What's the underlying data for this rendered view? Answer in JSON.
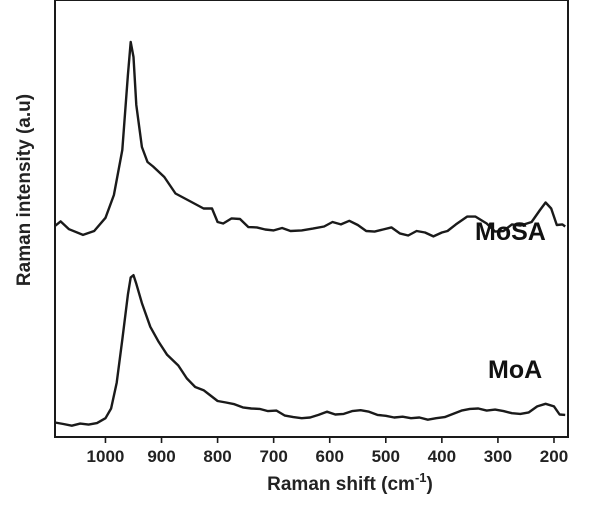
{
  "chart_data": {
    "type": "line",
    "xlabel": "Raman shift (cm",
    "xlabel_sup": "-1",
    "xlabel_tail": ")",
    "ylabel": "Raman intensity (a.u)",
    "xlim": [
      1090,
      175
    ],
    "ylim": [
      0,
      1
    ],
    "x_reversed": true,
    "x_ticks": [
      1000,
      900,
      800,
      700,
      600,
      500,
      400,
      300,
      200
    ],
    "y_ticks": [],
    "grid": false,
    "series": [
      {
        "name": "MoSA",
        "points": [
          [
            1090,
            0.347
          ],
          [
            1080,
            0.362
          ],
          [
            1065,
            0.336
          ],
          [
            1040,
            0.317
          ],
          [
            1020,
            0.33
          ],
          [
            1000,
            0.374
          ],
          [
            985,
            0.45
          ],
          [
            970,
            0.6
          ],
          [
            960,
            0.85
          ],
          [
            955,
            0.96
          ],
          [
            950,
            0.91
          ],
          [
            945,
            0.75
          ],
          [
            935,
            0.61
          ],
          [
            925,
            0.56
          ],
          [
            915,
            0.545
          ],
          [
            895,
            0.51
          ],
          [
            875,
            0.455
          ],
          [
            850,
            0.43
          ],
          [
            825,
            0.405
          ],
          [
            810,
            0.405
          ],
          [
            800,
            0.36
          ],
          [
            790,
            0.355
          ],
          [
            775,
            0.372
          ],
          [
            760,
            0.37
          ],
          [
            745,
            0.343
          ],
          [
            730,
            0.342
          ],
          [
            715,
            0.335
          ],
          [
            700,
            0.332
          ],
          [
            685,
            0.34
          ],
          [
            670,
            0.33
          ],
          [
            650,
            0.332
          ],
          [
            630,
            0.338
          ],
          [
            610,
            0.345
          ],
          [
            595,
            0.36
          ],
          [
            580,
            0.352
          ],
          [
            565,
            0.364
          ],
          [
            550,
            0.35
          ],
          [
            535,
            0.33
          ],
          [
            520,
            0.328
          ],
          [
            505,
            0.335
          ],
          [
            490,
            0.342
          ],
          [
            475,
            0.322
          ],
          [
            460,
            0.315
          ],
          [
            445,
            0.33
          ],
          [
            430,
            0.325
          ],
          [
            415,
            0.312
          ],
          [
            400,
            0.325
          ],
          [
            390,
            0.33
          ],
          [
            375,
            0.352
          ],
          [
            355,
            0.378
          ],
          [
            340,
            0.378
          ],
          [
            320,
            0.355
          ],
          [
            305,
            0.328
          ],
          [
            290,
            0.33
          ],
          [
            275,
            0.352
          ],
          [
            260,
            0.348
          ],
          [
            240,
            0.36
          ],
          [
            225,
            0.4
          ],
          [
            215,
            0.425
          ],
          [
            205,
            0.405
          ],
          [
            195,
            0.35
          ],
          [
            185,
            0.352
          ],
          [
            180,
            0.345
          ]
        ]
      },
      {
        "name": "MoA",
        "points": [
          [
            1090,
            0.035
          ],
          [
            1075,
            0.028
          ],
          [
            1060,
            0.02
          ],
          [
            1045,
            0.03
          ],
          [
            1030,
            0.025
          ],
          [
            1015,
            0.032
          ],
          [
            1000,
            0.055
          ],
          [
            990,
            0.1
          ],
          [
            980,
            0.22
          ],
          [
            970,
            0.42
          ],
          [
            960,
            0.63
          ],
          [
            955,
            0.71
          ],
          [
            950,
            0.72
          ],
          [
            945,
            0.68
          ],
          [
            935,
            0.59
          ],
          [
            920,
            0.48
          ],
          [
            905,
            0.41
          ],
          [
            890,
            0.35
          ],
          [
            870,
            0.3
          ],
          [
            855,
            0.24
          ],
          [
            840,
            0.2
          ],
          [
            825,
            0.185
          ],
          [
            815,
            0.165
          ],
          [
            800,
            0.135
          ],
          [
            785,
            0.128
          ],
          [
            770,
            0.12
          ],
          [
            755,
            0.105
          ],
          [
            740,
            0.1
          ],
          [
            725,
            0.098
          ],
          [
            710,
            0.088
          ],
          [
            695,
            0.09
          ],
          [
            680,
            0.067
          ],
          [
            665,
            0.06
          ],
          [
            650,
            0.055
          ],
          [
            635,
            0.058
          ],
          [
            620,
            0.07
          ],
          [
            605,
            0.085
          ],
          [
            590,
            0.072
          ],
          [
            575,
            0.075
          ],
          [
            560,
            0.088
          ],
          [
            545,
            0.092
          ],
          [
            530,
            0.085
          ],
          [
            515,
            0.07
          ],
          [
            500,
            0.066
          ],
          [
            485,
            0.058
          ],
          [
            470,
            0.062
          ],
          [
            455,
            0.055
          ],
          [
            440,
            0.058
          ],
          [
            425,
            0.048
          ],
          [
            410,
            0.055
          ],
          [
            395,
            0.06
          ],
          [
            380,
            0.075
          ],
          [
            365,
            0.09
          ],
          [
            350,
            0.098
          ],
          [
            335,
            0.1
          ],
          [
            320,
            0.09
          ],
          [
            305,
            0.095
          ],
          [
            290,
            0.088
          ],
          [
            275,
            0.078
          ],
          [
            260,
            0.075
          ],
          [
            245,
            0.082
          ],
          [
            230,
            0.11
          ],
          [
            215,
            0.122
          ],
          [
            200,
            0.11
          ],
          [
            190,
            0.072
          ],
          [
            180,
            0.07
          ]
        ]
      }
    ],
    "labels": {
      "MoSA": "MoSA",
      "MoA": "MoA"
    }
  }
}
